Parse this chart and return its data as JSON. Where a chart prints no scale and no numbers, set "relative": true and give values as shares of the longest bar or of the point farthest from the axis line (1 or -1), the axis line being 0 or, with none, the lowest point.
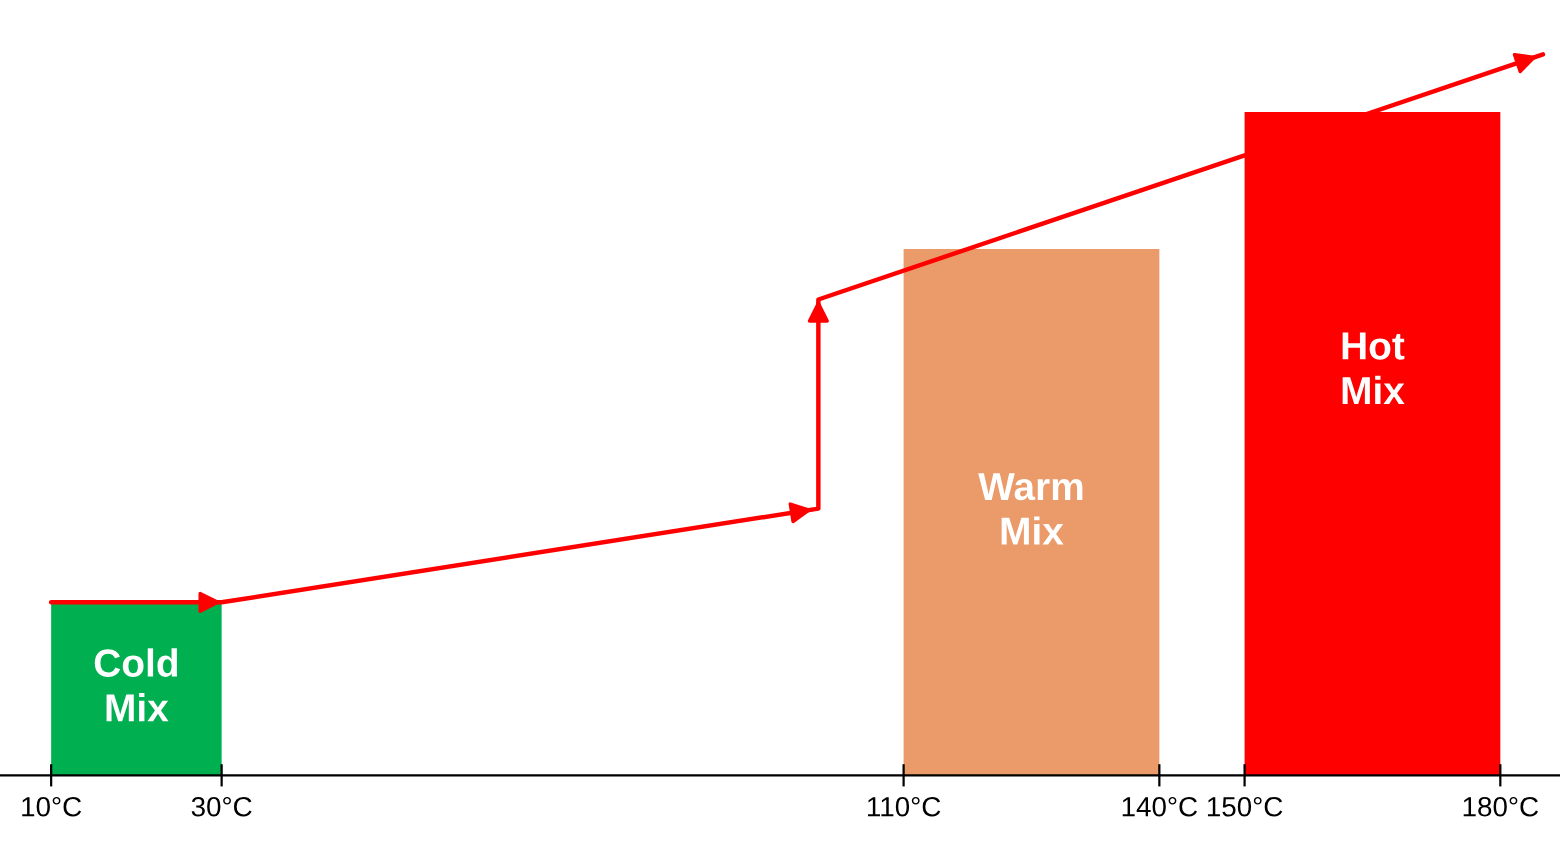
{
  "chart_data": {
    "type": "histogram",
    "relative": true,
    "tick_labels": "x",
    "bins": [
      10,
      30,
      110,
      140,
      150,
      180
    ],
    "values": [
      0.24,
      null,
      0.73,
      null,
      0.92
    ],
    "colors": [
      "#00b050",
      "#ffffff",
      "#eb9a6a",
      "#ffffff",
      "#ff0000"
    ],
    "xlim": [
      4,
      187
    ],
    "xticks": [
      {
        "value": 10,
        "label": "10°C"
      },
      {
        "value": 30,
        "label": "30°C"
      },
      {
        "value": 110,
        "label": "110°C"
      },
      {
        "value": 140,
        "label": "140°C"
      },
      {
        "value": 150,
        "label": "150°C"
      },
      {
        "value": 180,
        "label": "180°C"
      }
    ],
    "series": [
      {
        "type": "line",
        "color": "#ff0000",
        "x": [
          10,
          30,
          100,
          100,
          185
        ],
        "values": [
          0.24,
          0.24,
          0.37,
          0.66,
          1.0
        ]
      }
    ],
    "annotations": [
      "Cold\nMix",
      "Warm\nMix",
      "Hot\nMix"
    ],
    "grid": false,
    "legend": false
  }
}
